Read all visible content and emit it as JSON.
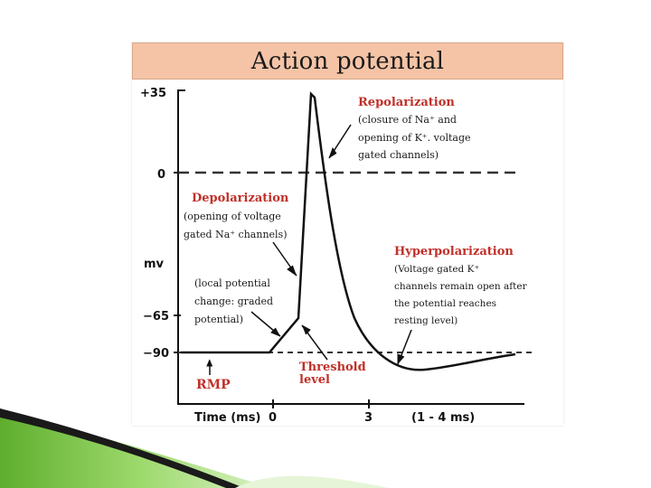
{
  "title": "Action potential",
  "axis": {
    "ylabel": "mv",
    "xlabel": "Time (ms)",
    "y_ticks": [
      "+35",
      "0",
      "−65",
      "−90"
    ],
    "x_ticks": [
      "0",
      "3",
      "(1 - 4 ms)"
    ]
  },
  "annotations": {
    "repolarization": {
      "title": "Repolarization",
      "lines": [
        "(closure of Na⁺ and",
        "opening of K⁺. voltage",
        "gated channels)"
      ]
    },
    "depolarization": {
      "title": "Depolarization",
      "lines": [
        "(opening of voltage",
        "gated Na⁺ channels)"
      ]
    },
    "hyperpolarization": {
      "title": "Hyperpolarization",
      "lines": [
        "(Voltage gated K⁺",
        "channels remain open after",
        "the potential reaches",
        "resting level)"
      ]
    },
    "local_potential": {
      "lines": [
        "(local potential",
        "change: graded",
        "potential)"
      ]
    },
    "threshold": {
      "lines": [
        "Threshold",
        "level"
      ]
    },
    "rmp": "RMP"
  },
  "colors": {
    "title_bar": "#f5c4a6",
    "annotation_red": "#c0302a",
    "curve": "#111111",
    "accent_green": "#7ac943"
  }
}
